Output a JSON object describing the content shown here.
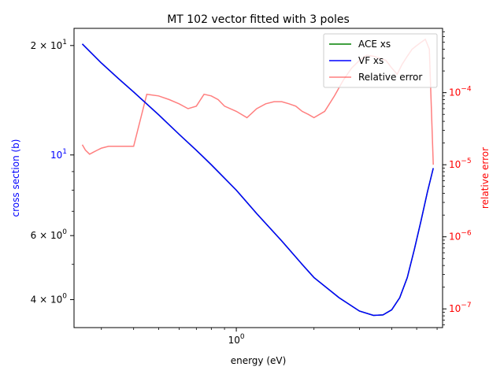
{
  "chart_data": {
    "type": "line",
    "title": "MT 102 vector fitted with 3 poles",
    "xlabel": "energy (eV)",
    "ylabel": "cross section (b)",
    "ylabel_right": "relative error",
    "xscale": "log",
    "yscale": "log",
    "yscale_right": "log",
    "xlim": [
      0.235,
      6.3
    ],
    "ylim": [
      3.35,
      22.3
    ],
    "ylim_right": [
      5.5e-08,
      0.00078
    ],
    "grid": false,
    "legend_position": "top-right",
    "x_ticks": [
      {
        "value": 1,
        "label": "10",
        "exp": "0"
      }
    ],
    "y_ticks_left": [
      {
        "value": 20,
        "label": "2 × 10",
        "exp": "1"
      },
      {
        "value": 10,
        "label": "10",
        "exp": "1"
      },
      {
        "value": 6,
        "label": "6 × 10",
        "exp": "0"
      },
      {
        "value": 4,
        "label": "4 × 10",
        "exp": "0"
      }
    ],
    "y_ticks_right": [
      {
        "value": 1e-07,
        "label": "10",
        "exp": "−7"
      },
      {
        "value": 1e-06,
        "label": "10",
        "exp": "−6"
      },
      {
        "value": 1e-05,
        "label": "10",
        "exp": "−5"
      },
      {
        "value": 0.0001,
        "label": "10",
        "exp": "−4"
      }
    ],
    "series": [
      {
        "name": "ACE xs",
        "color": "#008000",
        "axis": "left",
        "x": [
          0.253,
          0.3,
          0.35,
          0.4,
          0.5,
          0.6,
          0.7,
          0.8,
          1.0,
          1.2,
          1.5,
          1.8,
          2.0,
          2.5,
          3.0,
          3.4,
          3.7,
          4.0,
          4.3,
          4.6,
          4.9,
          5.2,
          5.5,
          5.8
        ],
        "values": [
          20.2,
          17.9,
          16.2,
          14.9,
          12.9,
          11.4,
          10.3,
          9.4,
          8.0,
          6.9,
          5.8,
          5.0,
          4.6,
          4.05,
          3.72,
          3.62,
          3.63,
          3.75,
          4.05,
          4.6,
          5.5,
          6.6,
          7.9,
          9.2
        ]
      },
      {
        "name": "VF xs",
        "color": "#0000ff",
        "axis": "left",
        "x": [
          0.253,
          0.3,
          0.35,
          0.4,
          0.5,
          0.6,
          0.7,
          0.8,
          1.0,
          1.2,
          1.5,
          1.8,
          2.0,
          2.5,
          3.0,
          3.4,
          3.7,
          4.0,
          4.3,
          4.6,
          4.9,
          5.2,
          5.5,
          5.8
        ],
        "values": [
          20.2,
          17.9,
          16.2,
          14.9,
          12.9,
          11.4,
          10.3,
          9.4,
          8.0,
          6.9,
          5.8,
          5.0,
          4.6,
          4.05,
          3.72,
          3.62,
          3.63,
          3.75,
          4.05,
          4.6,
          5.5,
          6.6,
          7.9,
          9.2
        ]
      },
      {
        "name": "Relative error",
        "color": "#ff0000",
        "opacity": 0.5,
        "axis": "right",
        "x": [
          0.253,
          0.26,
          0.27,
          0.28,
          0.29,
          0.3,
          0.32,
          0.34,
          0.36,
          0.38,
          0.4,
          0.45,
          0.5,
          0.55,
          0.6,
          0.65,
          0.7,
          0.75,
          0.8,
          0.85,
          0.9,
          1.0,
          1.1,
          1.2,
          1.3,
          1.4,
          1.5,
          1.6,
          1.7,
          1.8,
          1.9,
          2.0,
          2.2,
          2.4,
          2.6,
          2.8,
          3.0,
          3.2,
          3.4,
          3.6,
          3.8,
          4.0,
          4.2,
          4.4,
          4.6,
          4.8,
          5.0,
          5.2,
          5.4,
          5.6,
          5.8
        ],
        "values": [
          1.9e-05,
          1.6e-05,
          1.4e-05,
          1.5e-05,
          1.6e-05,
          1.7e-05,
          1.8e-05,
          1.8e-05,
          1.8e-05,
          1.8e-05,
          1.8e-05,
          9.5e-05,
          9e-05,
          8e-05,
          7e-05,
          6e-05,
          6.5e-05,
          9.5e-05,
          9e-05,
          8e-05,
          6.5e-05,
          5.5e-05,
          4.5e-05,
          6e-05,
          7e-05,
          7.5e-05,
          7.5e-05,
          7e-05,
          6.5e-05,
          5.5e-05,
          5e-05,
          4.5e-05,
          5.5e-05,
          9e-05,
          0.00015,
          0.00022,
          0.00028,
          0.00033,
          0.00032,
          0.0003,
          0.00028,
          0.00022,
          0.00018,
          0.00025,
          0.00032,
          0.0004,
          0.00045,
          0.0005,
          0.00055,
          0.0004,
          1e-05
        ]
      }
    ]
  }
}
